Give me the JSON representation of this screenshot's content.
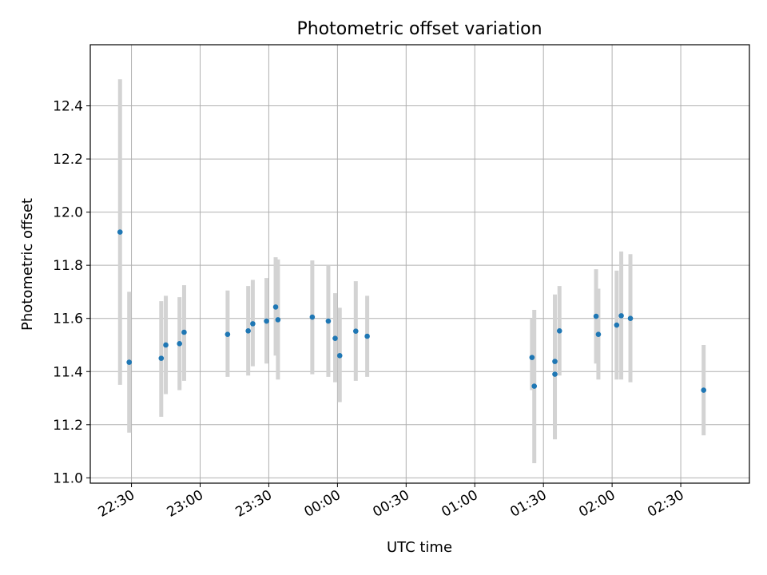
{
  "chart_data": {
    "type": "scatter",
    "title": "Photometric offset variation",
    "xlabel": "UTC time",
    "ylabel": "Photometric offset",
    "x_unit": "UTC time (HH:MM); values after 24:00 fall on the next day",
    "xlim": [
      "22:12",
      "03:00"
    ],
    "ylim": [
      10.98,
      12.63
    ],
    "x_ticks": [
      "22:30",
      "23:00",
      "23:30",
      "00:00",
      "00:30",
      "01:00",
      "01:30",
      "02:00",
      "02:30"
    ],
    "y_ticks": [
      "11.0",
      "11.2",
      "11.4",
      "11.6",
      "11.8",
      "12.0",
      "12.2",
      "12.4"
    ],
    "grid": true,
    "series": [
      {
        "point_color": "#1f77b4",
        "errorbar_color": "#d3d3d3",
        "points": [
          {
            "t": "22:25",
            "y": 11.925,
            "ylo": 11.35,
            "yhi": 12.5
          },
          {
            "t": "22:29",
            "y": 11.435,
            "ylo": 11.17,
            "yhi": 11.7
          },
          {
            "t": "22:43",
            "y": 11.45,
            "ylo": 11.23,
            "yhi": 11.665
          },
          {
            "t": "22:45",
            "y": 11.5,
            "ylo": 11.315,
            "yhi": 11.685
          },
          {
            "t": "22:51",
            "y": 11.505,
            "ylo": 11.33,
            "yhi": 11.68
          },
          {
            "t": "22:53",
            "y": 11.548,
            "ylo": 11.365,
            "yhi": 11.725
          },
          {
            "t": "23:12",
            "y": 11.54,
            "ylo": 11.38,
            "yhi": 11.705
          },
          {
            "t": "23:21",
            "y": 11.553,
            "ylo": 11.385,
            "yhi": 11.722
          },
          {
            "t": "23:23",
            "y": 11.58,
            "ylo": 11.42,
            "yhi": 11.745
          },
          {
            "t": "23:29",
            "y": 11.59,
            "ylo": 11.43,
            "yhi": 11.752
          },
          {
            "t": "23:33",
            "y": 11.643,
            "ylo": 11.46,
            "yhi": 11.83
          },
          {
            "t": "23:34",
            "y": 11.595,
            "ylo": 11.37,
            "yhi": 11.822
          },
          {
            "t": "23:49",
            "y": 11.605,
            "ylo": 11.39,
            "yhi": 11.818
          },
          {
            "t": "23:56",
            "y": 11.59,
            "ylo": 11.38,
            "yhi": 11.8
          },
          {
            "t": "23:59",
            "y": 11.525,
            "ylo": 11.36,
            "yhi": 11.695
          },
          {
            "t": "24:01",
            "y": 11.46,
            "ylo": 11.285,
            "yhi": 11.64
          },
          {
            "t": "24:08",
            "y": 11.552,
            "ylo": 11.365,
            "yhi": 11.74
          },
          {
            "t": "24:13",
            "y": 11.533,
            "ylo": 11.38,
            "yhi": 11.685
          },
          {
            "t": "25:25",
            "y": 11.453,
            "ylo": 11.33,
            "yhi": 11.6
          },
          {
            "t": "25:26",
            "y": 11.345,
            "ylo": 11.055,
            "yhi": 11.632
          },
          {
            "t": "25:35",
            "y": 11.438,
            "ylo": 11.185,
            "yhi": 11.69
          },
          {
            "t": "25:35",
            "y": 11.39,
            "ylo": 11.145,
            "yhi": 11.58
          },
          {
            "t": "25:37",
            "y": 11.553,
            "ylo": 11.385,
            "yhi": 11.722
          },
          {
            "t": "25:53",
            "y": 11.608,
            "ylo": 11.43,
            "yhi": 11.785
          },
          {
            "t": "25:54",
            "y": 11.54,
            "ylo": 11.37,
            "yhi": 11.712
          },
          {
            "t": "26:02",
            "y": 11.575,
            "ylo": 11.37,
            "yhi": 11.78
          },
          {
            "t": "26:04",
            "y": 11.61,
            "ylo": 11.37,
            "yhi": 11.852
          },
          {
            "t": "26:08",
            "y": 11.6,
            "ylo": 11.36,
            "yhi": 11.842
          },
          {
            "t": "26:40",
            "y": 11.33,
            "ylo": 11.16,
            "yhi": 11.5
          }
        ]
      }
    ]
  }
}
